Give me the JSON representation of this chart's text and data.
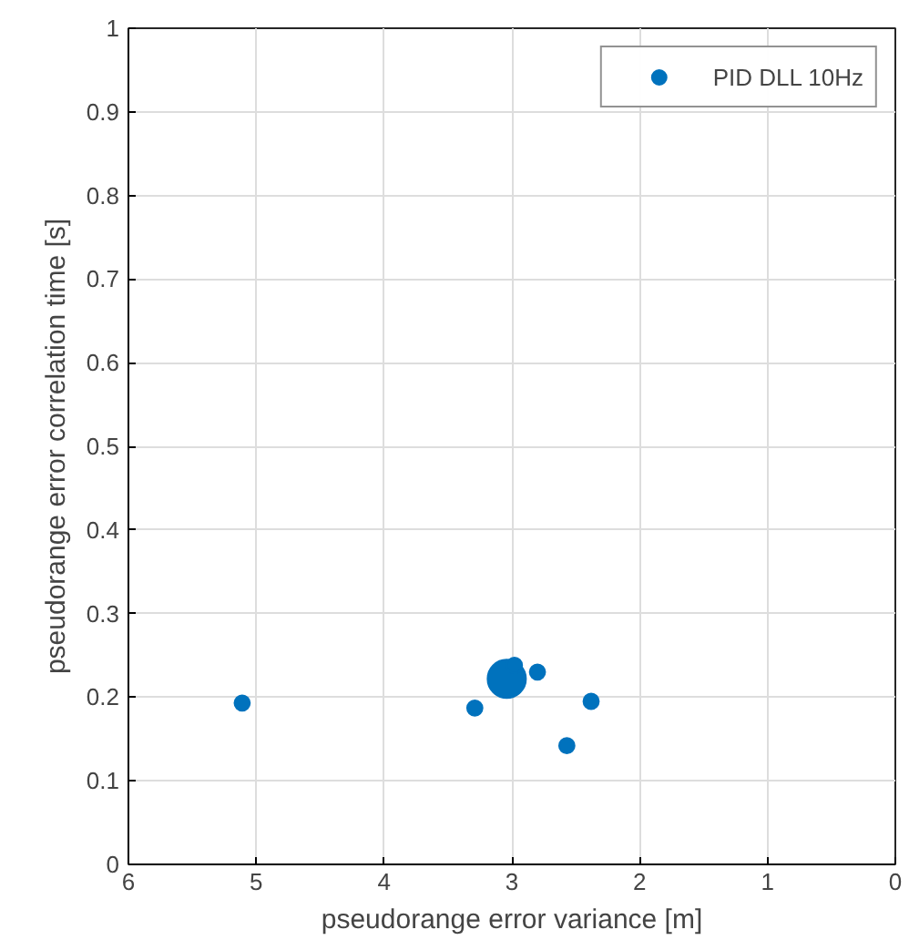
{
  "chart_data": {
    "type": "bubble",
    "xlabel": "pseudorange error variance [m]",
    "ylabel": "pseudorange error correlation time [s]",
    "xlim": [
      6,
      0
    ],
    "xticks": [
      6,
      5,
      4,
      3,
      2,
      1,
      0
    ],
    "ylim": [
      0,
      1
    ],
    "yticks": [
      0,
      0.1,
      0.2,
      0.3,
      0.4,
      0.5,
      0.6,
      0.7,
      0.8,
      0.9,
      1
    ],
    "series": [
      {
        "name": "PID DLL 10Hz",
        "color": "#0072bd",
        "x": [
          5.11,
          3.04,
          2.98,
          2.8,
          3.29,
          2.38,
          2.57
        ],
        "values": [
          0.193,
          0.222,
          0.238,
          0.23,
          0.187,
          0.195,
          0.142
        ],
        "sizes": [
          0.16,
          1,
          0.16,
          0.16,
          0.16,
          0.16,
          0.16
        ]
      }
    ],
    "grid": true,
    "legend": "top right"
  }
}
